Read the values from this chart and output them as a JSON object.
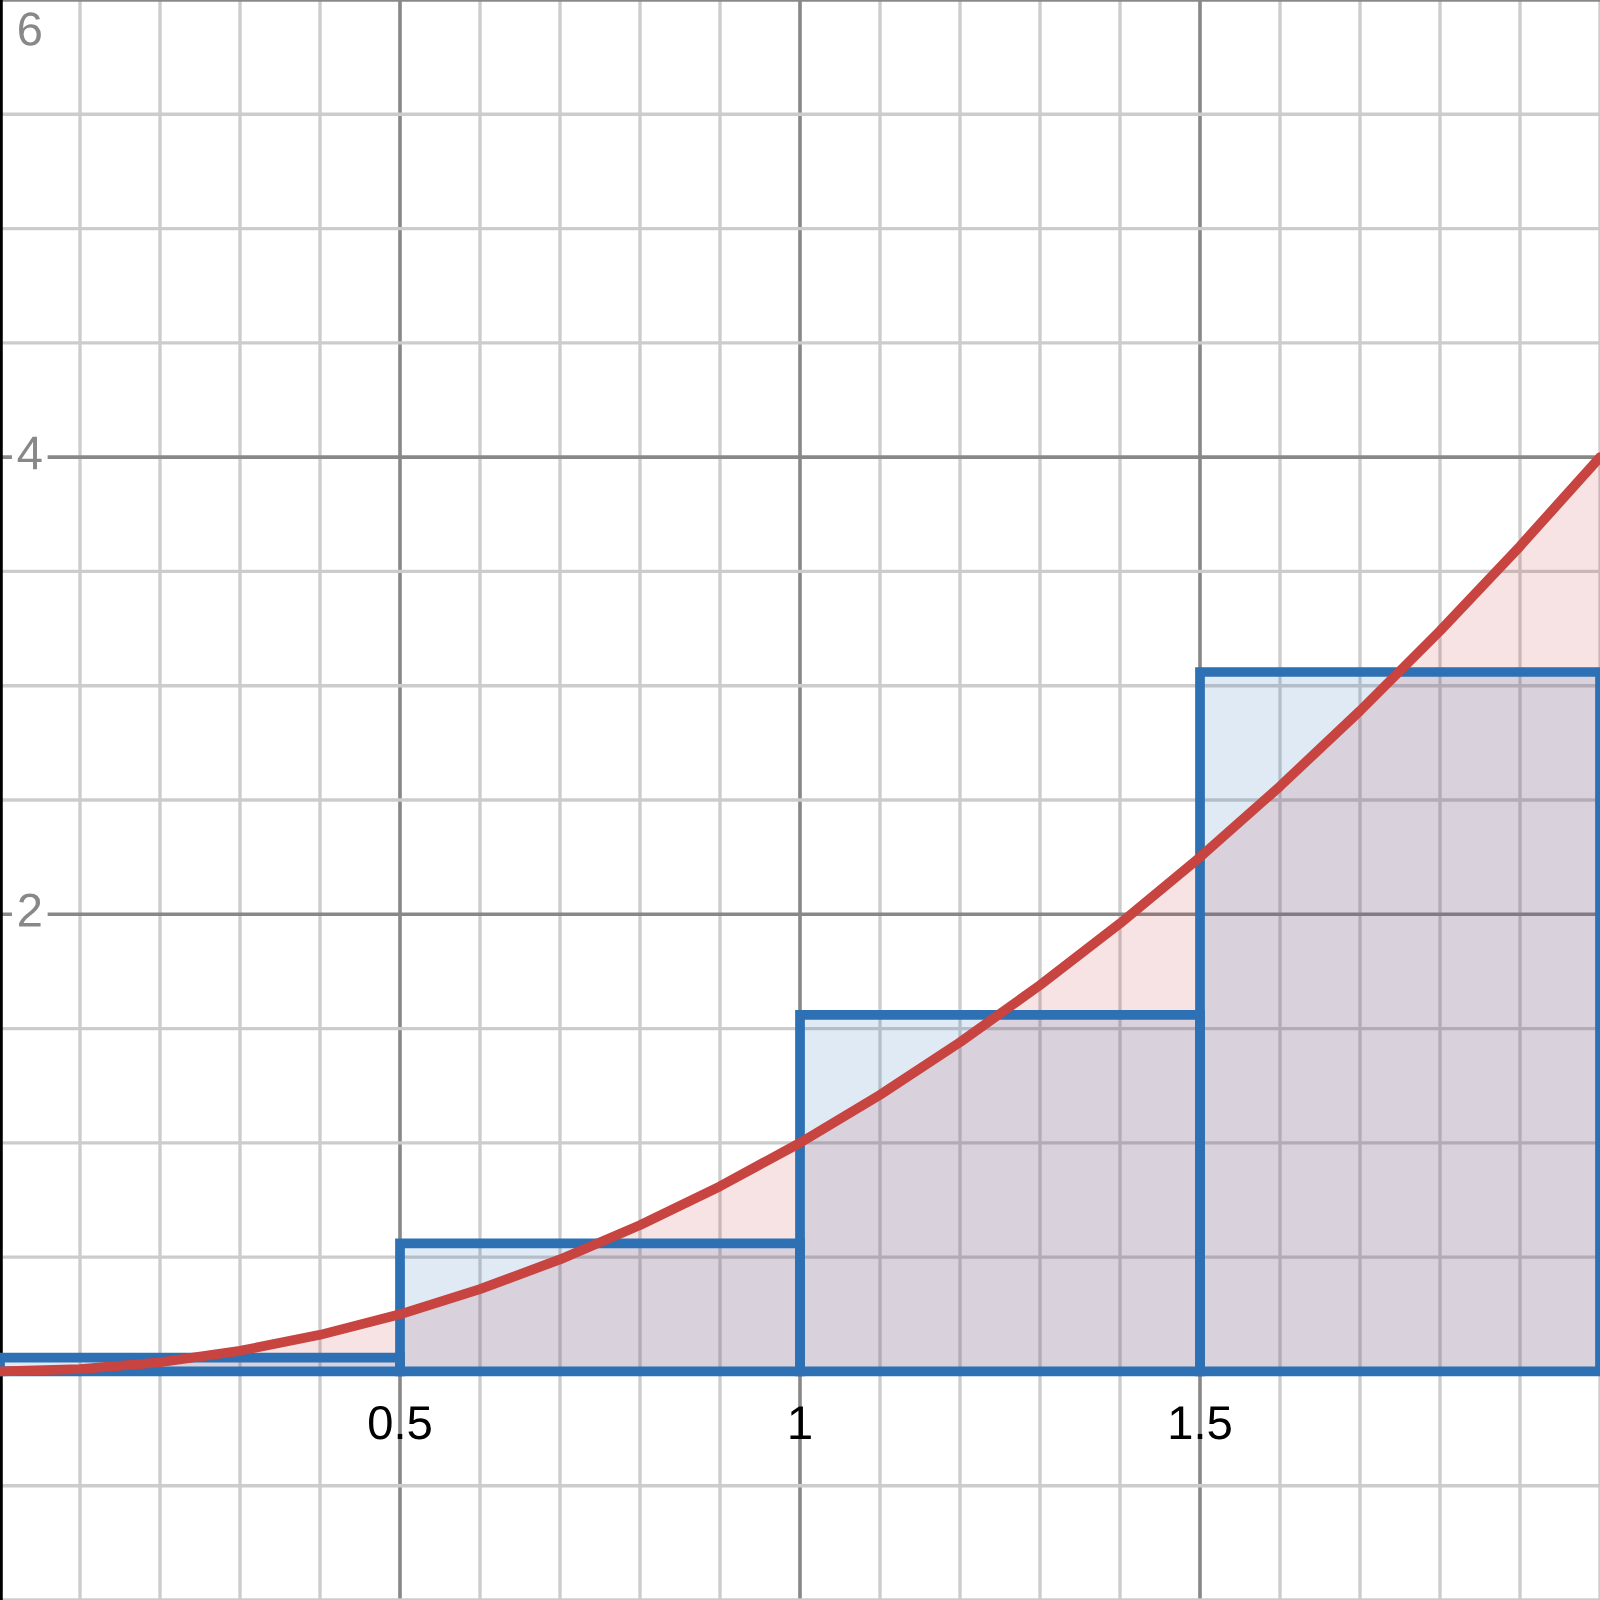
{
  "chart_data": {
    "type": "area",
    "series": [
      {
        "color": "#c74440",
        "x": [
          0,
          0.1,
          0.2,
          0.3,
          0.4,
          0.5,
          0.6,
          0.7,
          0.8,
          0.9,
          1,
          1.1,
          1.2,
          1.3,
          1.4,
          1.5,
          1.6,
          1.7,
          1.8,
          1.9,
          2
        ],
        "values": [
          0,
          0.01,
          0.04,
          0.09,
          0.16,
          0.25,
          0.36,
          0.49,
          0.64,
          0.81,
          1,
          1.21,
          1.44,
          1.69,
          1.96,
          2.25,
          2.56,
          2.89,
          3.24,
          3.61,
          4
        ]
      },
      {
        "type": "histogram",
        "color": "#2d70b3",
        "bins": [
          0,
          0.5,
          1,
          1.5,
          2
        ],
        "values": [
          0.06,
          0.56,
          1.56,
          3.06
        ]
      }
    ],
    "xlim": [
      0,
      2
    ],
    "ylim": [
      -1,
      6
    ],
    "xticks": [
      0.5,
      1,
      1.5
    ],
    "yticks": [
      2,
      4,
      6
    ],
    "grid": true
  }
}
